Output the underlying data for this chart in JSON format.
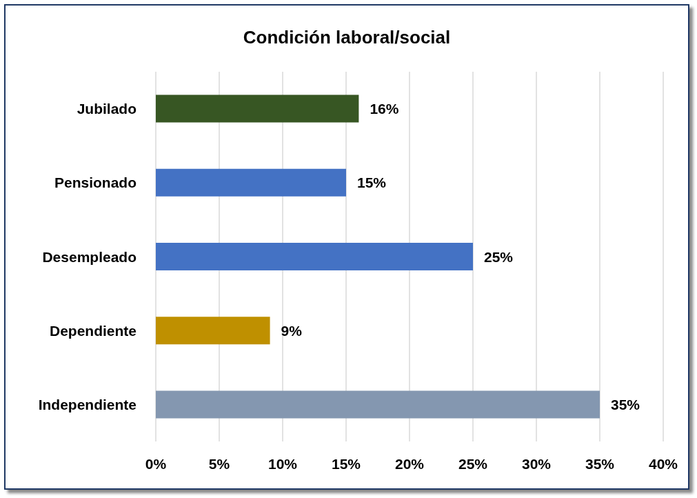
{
  "chart_data": {
    "type": "bar",
    "orientation": "horizontal",
    "title": "Condición laboral/social",
    "categories": [
      "Jubilado",
      "Pensionado",
      "Desempleado",
      "Dependiente",
      "Independiente"
    ],
    "values": [
      16,
      15,
      25,
      9,
      35
    ],
    "colors": [
      "#375623",
      "#4472c4",
      "#4472c4",
      "#bf9000",
      "#8497b0"
    ],
    "value_labels": [
      "16%",
      "15%",
      "25%",
      "9%",
      "35%"
    ],
    "xlim": [
      0,
      40
    ],
    "xticks": [
      {
        "value": 0,
        "label": "0%"
      },
      {
        "value": 5,
        "label": "5%"
      },
      {
        "value": 10,
        "label": "10%"
      },
      {
        "value": 15,
        "label": "15%"
      },
      {
        "value": 20,
        "label": "20%"
      },
      {
        "value": 25,
        "label": "25%"
      },
      {
        "value": 30,
        "label": "30%"
      },
      {
        "value": 35,
        "label": "35%"
      },
      {
        "value": 40,
        "label": "40%"
      }
    ],
    "grid": "x"
  }
}
